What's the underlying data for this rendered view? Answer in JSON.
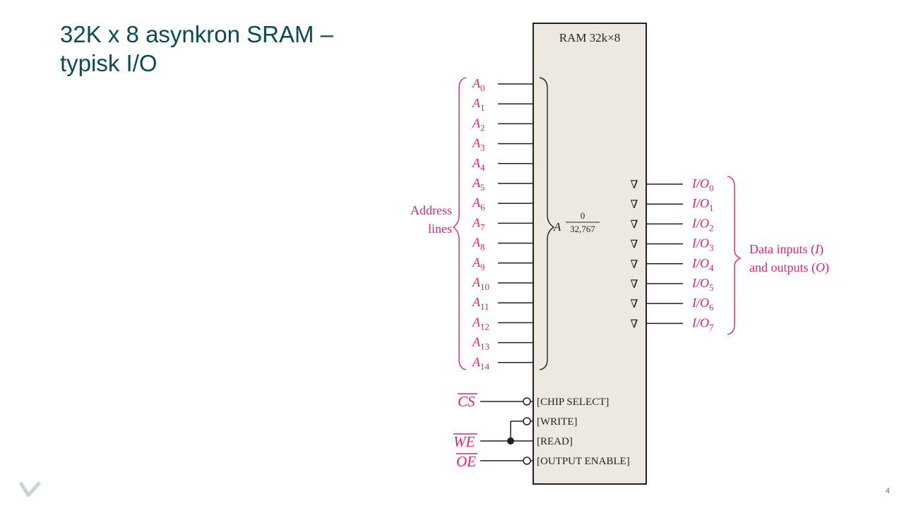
{
  "slide": {
    "title_line1": "32K x 8 asynkron SRAM –",
    "title_line2": "typisk I/O",
    "page_number": "4",
    "accent_color": "#0b4a56",
    "logo_icon": "v-logo-icon"
  },
  "diagram": {
    "chip_label": "RAM 32k×8",
    "address_letter": "A",
    "address_range_top": "0",
    "address_range_bottom": "32,767",
    "address_group_label_1": "Address",
    "address_group_label_2": "lines",
    "address_pins": [
      {
        "base": "A",
        "sub": "0"
      },
      {
        "base": "A",
        "sub": "1"
      },
      {
        "base": "A",
        "sub": "2"
      },
      {
        "base": "A",
        "sub": "3"
      },
      {
        "base": "A",
        "sub": "4"
      },
      {
        "base": "A",
        "sub": "5"
      },
      {
        "base": "A",
        "sub": "6"
      },
      {
        "base": "A",
        "sub": "7"
      },
      {
        "base": "A",
        "sub": "8"
      },
      {
        "base": "A",
        "sub": "9"
      },
      {
        "base": "A",
        "sub": "10"
      },
      {
        "base": "A",
        "sub": "11"
      },
      {
        "base": "A",
        "sub": "12"
      },
      {
        "base": "A",
        "sub": "13"
      },
      {
        "base": "A",
        "sub": "14"
      }
    ],
    "io_pins": [
      {
        "base": "I/O",
        "sub": "0"
      },
      {
        "base": "I/O",
        "sub": "1"
      },
      {
        "base": "I/O",
        "sub": "2"
      },
      {
        "base": "I/O",
        "sub": "3"
      },
      {
        "base": "I/O",
        "sub": "4"
      },
      {
        "base": "I/O",
        "sub": "5"
      },
      {
        "base": "I/O",
        "sub": "6"
      },
      {
        "base": "I/O",
        "sub": "7"
      }
    ],
    "tristate_symbol": "∇",
    "data_group_label_1": "Data inputs (I)",
    "data_group_label_2": "and outputs (O)",
    "control_signals": {
      "cs": "CS",
      "we": "WE",
      "oe": "OE"
    },
    "control_labels": {
      "chip_select": "[CHIP SELECT]",
      "write": "[WRITE]",
      "read": "[READ]",
      "output_enable": "[OUTPUT ENABLE]"
    },
    "colors": {
      "signal_pink": "#d6237e",
      "chip_fill": "#ede9e1",
      "line": "#231f20"
    }
  }
}
